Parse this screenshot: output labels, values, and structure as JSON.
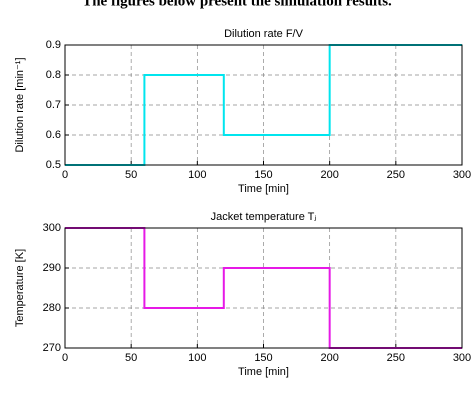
{
  "caption": "The figures below present the simulation results.",
  "chart_data": [
    {
      "type": "line",
      "title": "Dilution rate F/V",
      "xlabel": "Time [min]",
      "ylabel": "Dilution rate [min⁻¹]",
      "x": [
        0,
        60,
        60,
        120,
        120,
        200,
        200,
        300
      ],
      "series": [
        {
          "color": "#00e5ee",
          "values": [
            0.5,
            0.5,
            0.8,
            0.8,
            0.6,
            0.6,
            0.9,
            0.9
          ]
        }
      ],
      "xlim": [
        0,
        300
      ],
      "xticks": [
        0,
        50,
        100,
        150,
        200,
        250,
        300
      ],
      "ylim": [
        0.5,
        0.9
      ],
      "yticks": [
        0.5,
        0.6,
        0.7,
        0.8,
        0.9
      ],
      "grid": true
    },
    {
      "type": "line",
      "title": "Jacket temperature Tⱼ",
      "xlabel": "Time [min]",
      "ylabel": "Temperature [K]",
      "x": [
        0,
        60,
        60,
        120,
        120,
        200,
        200,
        300
      ],
      "series": [
        {
          "color": "#e619e6",
          "values": [
            300,
            300,
            280,
            280,
            290,
            290,
            270,
            270
          ]
        }
      ],
      "xlim": [
        0,
        300
      ],
      "xticks": [
        0,
        50,
        100,
        150,
        200,
        250,
        300
      ],
      "ylim": [
        270,
        300
      ],
      "yticks": [
        270,
        280,
        290,
        300
      ],
      "grid": true
    }
  ]
}
